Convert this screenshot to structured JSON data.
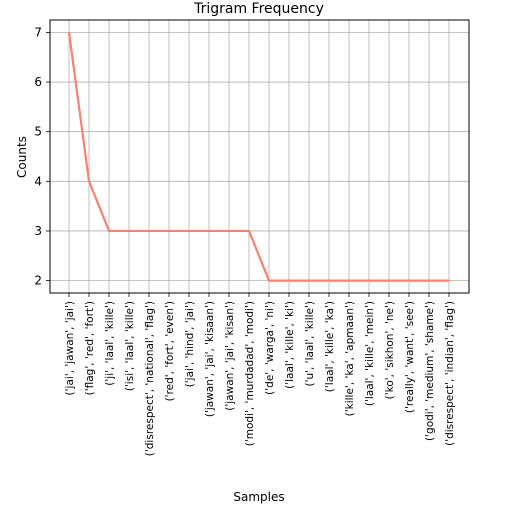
{
  "chart_data": {
    "type": "line",
    "title": "Trigram Frequency",
    "xlabel": "Samples",
    "ylabel": "Counts",
    "categories": [
      "('jai', 'jawan', 'jai')",
      "('flag', 'red', 'fort')",
      "('ji', 'laal', 'kille')",
      "('isi', 'laal', 'kille')",
      "('disrespect', 'national', 'flag')",
      "('red', 'fort', 'even')",
      "('jai', 'hind', 'jai')",
      "('jawan', 'jai', 'kisaan')",
      "('jawan', 'jai', 'kisan')",
      "('modi', 'murdadad', 'modi')",
      "('de', 'warga', 'ni')",
      "('laal', 'kille', 'ki')",
      "('u', 'laal', 'kille')",
      "('laal', 'kille', 'ka')",
      "('kille', 'ka', 'apmaan')",
      "('laal', 'kille', 'mein')",
      "('ko', 'sikhon', 'ne')",
      "('really', 'want', 'see')",
      "('godi', 'medium', 'shame')",
      "('disrespect', 'indian', 'flag')"
    ],
    "values": [
      7,
      4,
      3,
      3,
      3,
      3,
      3,
      3,
      3,
      3,
      2,
      2,
      2,
      2,
      2,
      2,
      2,
      2,
      2,
      2
    ],
    "yticks": [
      2,
      3,
      4,
      5,
      6,
      7
    ],
    "ylim": [
      1.75,
      7.25
    ],
    "grid": true,
    "line_color": "#fa8072"
  }
}
